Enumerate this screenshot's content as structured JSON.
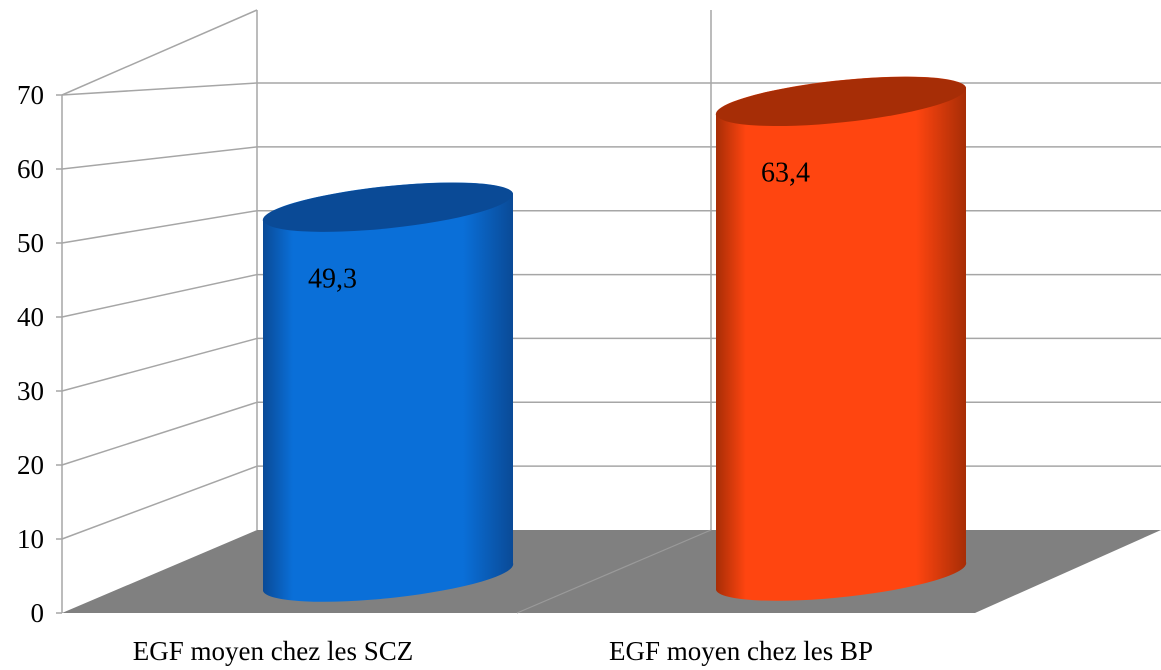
{
  "chart_data": {
    "type": "bar",
    "style": "3d-cylinder",
    "categories": [
      "EGF moyen chez les SCZ",
      "EGF moyen chez les BP"
    ],
    "values": [
      49.3,
      63.4
    ],
    "data_labels": [
      "49,3",
      "63,4"
    ],
    "bar_colors": [
      "#0a6fd8",
      "#ff4510"
    ],
    "bar_top_colors": [
      "#0a4a96",
      "#a62d06"
    ],
    "y_ticks": [
      "0",
      "10",
      "20",
      "30",
      "40",
      "50",
      "60",
      "70"
    ],
    "ylim": [
      0,
      70
    ],
    "grid": true,
    "floor_color": "#808080",
    "title": "",
    "xlabel": "",
    "ylabel": ""
  }
}
